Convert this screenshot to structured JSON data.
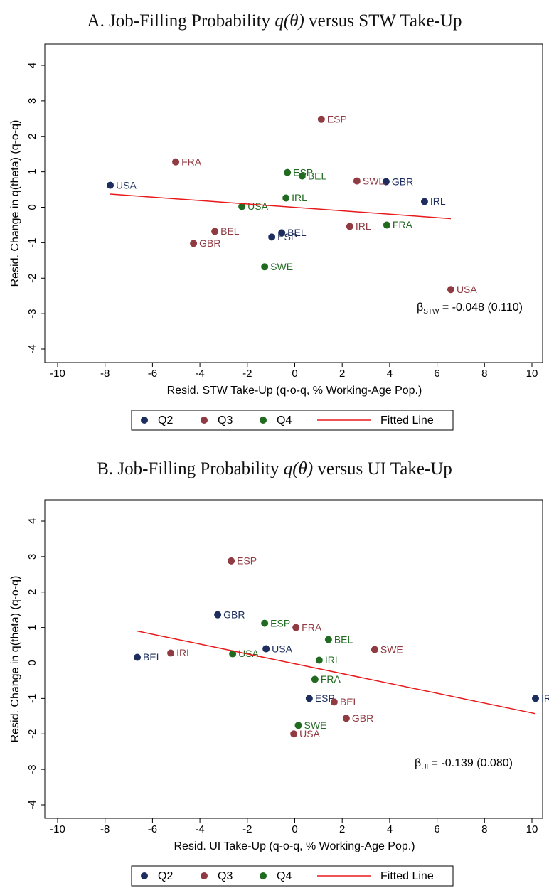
{
  "chart_data": [
    {
      "type": "scatter",
      "title": [
        {
          "text": "A. Job-Filling Probability "
        },
        {
          "text": "q(θ)",
          "italic": true
        },
        {
          "text": " versus STW Take-Up"
        }
      ],
      "x_label": "Resid. STW Take-Up (q-o-q, % Working-Age Pop.)",
      "y_label": "Resid. Change in q(theta) (q-o-q)",
      "xlim": [
        -10,
        10
      ],
      "xticks": [
        -10,
        -8,
        -6,
        -4,
        -2,
        0,
        2,
        4,
        6,
        8,
        10
      ],
      "ylim": [
        -4,
        4
      ],
      "yticks": [
        -4,
        -3,
        -2,
        -1,
        0,
        1,
        2,
        3,
        4
      ],
      "series": [
        {
          "name": "Q2",
          "color": "#1c2d5e",
          "x": [
            -7.78,
            3.85,
            5.47,
            -0.55,
            -0.97
          ],
          "values": [
            0.62,
            0.72,
            0.16,
            -0.72,
            -0.84
          ],
          "labels": [
            "USA",
            "GBR",
            "IRL",
            "BEL",
            "ESP"
          ]
        },
        {
          "name": "Q3",
          "color": "#903a42",
          "x": [
            -5.02,
            1.12,
            2.62,
            2.32,
            -3.37,
            -4.27,
            6.58
          ],
          "values": [
            1.28,
            2.48,
            0.74,
            -0.54,
            -0.68,
            -1.02,
            -2.32
          ],
          "labels": [
            "FRA",
            "ESP",
            "SWE",
            "IRL",
            "BEL",
            "GBR",
            "USA"
          ]
        },
        {
          "name": "Q4",
          "color": "#216b21",
          "x": [
            -0.31,
            0.31,
            -0.37,
            -2.23,
            3.88,
            -1.27
          ],
          "values": [
            0.98,
            0.88,
            0.26,
            0.02,
            -0.5,
            -1.68
          ],
          "labels": [
            "ESP",
            "BEL",
            "IRL",
            "USA",
            "FRA",
            "SWE"
          ]
        },
        {
          "name": "Fitted Line",
          "type": "line",
          "color": "#e8191b",
          "x": [
            -7.78,
            6.58
          ],
          "values": [
            0.37,
            -0.32
          ]
        }
      ],
      "annotation": {
        "symbol": "β",
        "subscript": "STW",
        "text": " = -0.048 (0.110)"
      }
    },
    {
      "type": "scatter",
      "title": [
        {
          "text": "B. Job-Filling Probability "
        },
        {
          "text": "q(θ)",
          "italic": true
        },
        {
          "text": " versus UI Take-Up"
        }
      ],
      "x_label": "Resid. UI Take-Up (q-o-q, % Working-Age Pop.)",
      "y_label": "Resid. Change in q(theta) (q-o-q)",
      "xlim": [
        -10,
        10
      ],
      "xticks": [
        -10,
        -8,
        -6,
        -4,
        -2,
        0,
        2,
        4,
        6,
        8,
        10
      ],
      "ylim": [
        -4,
        4
      ],
      "yticks": [
        -4,
        -3,
        -2,
        -1,
        0,
        1,
        2,
        3,
        4
      ],
      "series": [
        {
          "name": "Q2",
          "color": "#1c2d5e",
          "x": [
            -3.25,
            -6.64,
            -1.21,
            0.61,
            10.15
          ],
          "values": [
            1.36,
            0.16,
            0.4,
            -1.0,
            -1.0
          ],
          "labels": [
            "GBR",
            "BEL",
            "USA",
            "ESP",
            "IRL"
          ]
        },
        {
          "name": "Q3",
          "color": "#903a42",
          "x": [
            -2.68,
            0.05,
            -5.23,
            3.37,
            1.66,
            2.17,
            -0.04
          ],
          "values": [
            2.88,
            1.0,
            0.28,
            0.38,
            -1.1,
            -1.56,
            -2.0
          ],
          "labels": [
            "ESP",
            "FRA",
            "IRL",
            "SWE",
            "BEL",
            "GBR",
            "USA"
          ]
        },
        {
          "name": "Q4",
          "color": "#216b21",
          "x": [
            -1.27,
            1.42,
            -2.62,
            1.03,
            0.85,
            0.15
          ],
          "values": [
            1.12,
            0.66,
            0.26,
            0.08,
            -0.46,
            -1.76
          ],
          "labels": [
            "ESP",
            "BEL",
            "USA",
            "IRL",
            "FRA",
            "SWE"
          ]
        },
        {
          "name": "Fitted Line",
          "type": "line",
          "color": "#e8191b",
          "x": [
            -6.64,
            10.15
          ],
          "values": [
            0.9,
            -1.43
          ]
        }
      ],
      "annotation": {
        "symbol": "β",
        "subscript": "UI",
        "text": " = -0.139 (0.080)"
      }
    }
  ]
}
